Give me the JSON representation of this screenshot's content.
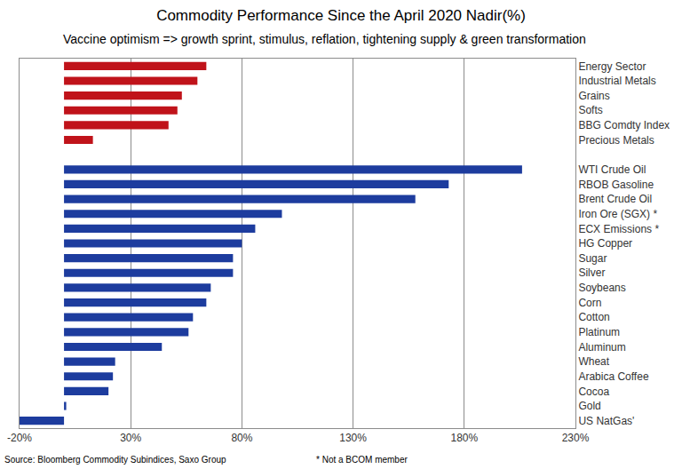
{
  "chart_data": {
    "type": "bar",
    "orientation": "horizontal",
    "title": "Commodity Performance Since the April 2020 Nadir(%)",
    "subtitle": "Vaccine optimism => growth sprint, stimulus, reflation, tightening supply & green transformation",
    "annotations": [
      "Source: Bloomberg Commodity Subindices, Saxo Group",
      "* Not a BCOM member"
    ],
    "categories": [
      "Energy Sector",
      "Industrial Metals",
      "Grains",
      "Softs",
      "BBG Comdty Index",
      "Precious Metals",
      null,
      "WTI Crude Oil",
      "RBOB Gasoline",
      "Brent Crude Oil",
      "Iron Ore (SGX) *",
      "ECX Emissions *",
      "HG Copper",
      "Sugar",
      "Silver",
      "Soybeans",
      "Corn",
      "Cotton",
      "Platinum",
      "Aluminum",
      "Wheat",
      "Arabica Coffee",
      "Cocoa",
      "Gold",
      "US NatGas'"
    ],
    "values": [
      64,
      60,
      53,
      51,
      47,
      13,
      null,
      206,
      173,
      158,
      98,
      86,
      80,
      76,
      76,
      66,
      64,
      58,
      56,
      44,
      23,
      22,
      20,
      1,
      -20
    ],
    "colors": [
      "#c0131a",
      "#c0131a",
      "#c0131a",
      "#c0131a",
      "#c0131a",
      "#c0131a",
      null,
      "#1d3c9e",
      "#1d3c9e",
      "#1d3c9e",
      "#1d3c9e",
      "#1d3c9e",
      "#1d3c9e",
      "#1d3c9e",
      "#1d3c9e",
      "#1d3c9e",
      "#1d3c9e",
      "#1d3c9e",
      "#1d3c9e",
      "#1d3c9e",
      "#1d3c9e",
      "#1d3c9e",
      "#1d3c9e",
      "#1d3c9e",
      "#1d3c9e"
    ],
    "xlim": [
      -20,
      230
    ],
    "xticks": [
      {
        "value": -20,
        "label": "-20%"
      },
      {
        "value": 30,
        "label": "30%"
      },
      {
        "value": 80,
        "label": "80%"
      },
      {
        "value": 130,
        "label": "130%"
      },
      {
        "value": 180,
        "label": "180%"
      },
      {
        "value": 230,
        "label": "230%"
      }
    ],
    "grid": true
  }
}
